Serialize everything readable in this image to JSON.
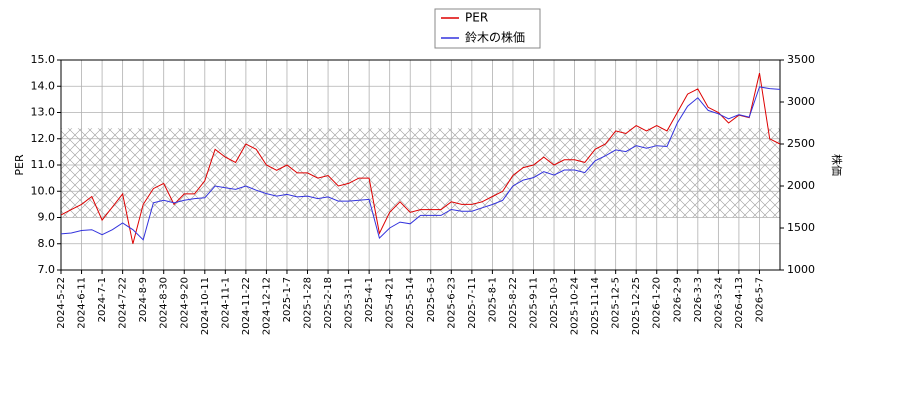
{
  "chart_data": {
    "type": "line",
    "y_label": "PER",
    "y2_label": "株価",
    "categories": [
      "2024-5-22",
      null,
      "2024-6-11",
      null,
      "2024-7-1",
      null,
      "2024-7-22",
      null,
      "2024-8-9",
      null,
      "2024-8-30",
      null,
      "2024-9-20",
      null,
      "2024-10-11",
      null,
      "2024-11-1",
      null,
      "2024-11-22",
      null,
      "2024-12-12",
      null,
      "2025-1-7",
      null,
      "2025-1-28",
      null,
      "2025-2-18",
      null,
      "2025-3-11",
      null,
      "2025-4-1",
      null,
      "2025-4-21",
      null,
      "2025-5-14",
      null,
      "2025-6-3",
      null,
      "2025-6-23",
      null,
      "2025-7-11",
      null,
      "2025-8-1",
      null,
      "2025-8-22",
      null,
      "2025-9-11",
      null,
      "2025-10-3",
      null,
      "2025-10-24",
      null,
      "2025-11-14",
      null,
      "2025-12-5",
      null,
      "2025-12-25",
      null,
      "2026-1-20",
      null,
      "2026-2-9",
      null,
      "2026-3-3",
      null,
      "2026-3-24",
      null,
      "2026-4-13",
      null,
      "2026-5-7",
      null,
      null
    ],
    "series": [
      {
        "name": "PER",
        "color": "#dd0000",
        "values": [
          9.1,
          9.3,
          9.5,
          9.8,
          8.9,
          9.4,
          9.9,
          8.0,
          9.5,
          10.1,
          10.3,
          9.5,
          9.9,
          9.9,
          10.4,
          11.6,
          11.3,
          11.1,
          11.8,
          11.6,
          11.0,
          10.8,
          11.0,
          10.7,
          10.7,
          10.5,
          10.6,
          10.2,
          10.3,
          10.5,
          10.5,
          8.4,
          9.2,
          9.6,
          9.2,
          9.3,
          9.3,
          9.3,
          9.6,
          9.5,
          9.5,
          9.6,
          9.8,
          10.0,
          10.6,
          10.9,
          11.0,
          11.3,
          11.0,
          11.2,
          11.2,
          11.1,
          11.6,
          11.8,
          12.3,
          12.2,
          12.5,
          12.3,
          12.5,
          12.3,
          13.0,
          13.7,
          13.9,
          13.2,
          13.0,
          12.6,
          12.9,
          12.8,
          14.5,
          12.0,
          11.8
        ]
      },
      {
        "name": "鈴木の株価",
        "color": "#3333dd",
        "axis": "y2",
        "values": [
          1430,
          1440,
          1470,
          1480,
          1420,
          1480,
          1560,
          1480,
          1360,
          1800,
          1830,
          1800,
          1830,
          1850,
          1860,
          2000,
          1980,
          1960,
          2000,
          1950,
          1910,
          1880,
          1900,
          1870,
          1880,
          1850,
          1870,
          1820,
          1820,
          1830,
          1840,
          1380,
          1500,
          1570,
          1550,
          1650,
          1650,
          1650,
          1720,
          1700,
          1700,
          1740,
          1780,
          1830,
          2000,
          2070,
          2100,
          2170,
          2130,
          2190,
          2190,
          2160,
          2300,
          2360,
          2430,
          2410,
          2480,
          2450,
          2480,
          2470,
          2750,
          2950,
          3050,
          2900,
          2860,
          2800,
          2850,
          2820,
          3180,
          3160,
          3150
        ]
      }
    ],
    "band": [
      9.0,
      12.4
    ],
    "ylim": [
      7,
      15
    ],
    "yticks": [
      {
        "value": 7,
        "label": "7.0"
      },
      {
        "value": 8,
        "label": "8.0"
      },
      {
        "value": 9,
        "label": "9.0"
      },
      {
        "value": 10,
        "label": "10.0"
      },
      {
        "value": 11,
        "label": "11.0"
      },
      {
        "value": 12,
        "label": "12.0"
      },
      {
        "value": 13,
        "label": "13.0"
      },
      {
        "value": 14,
        "label": "14.0"
      },
      {
        "value": 15,
        "label": "15.0"
      }
    ],
    "y2lim": [
      1000,
      3500
    ],
    "y2ticks": [
      1000,
      1500,
      2000,
      2500,
      3000,
      3500
    ],
    "grid": true,
    "legend": "top"
  }
}
